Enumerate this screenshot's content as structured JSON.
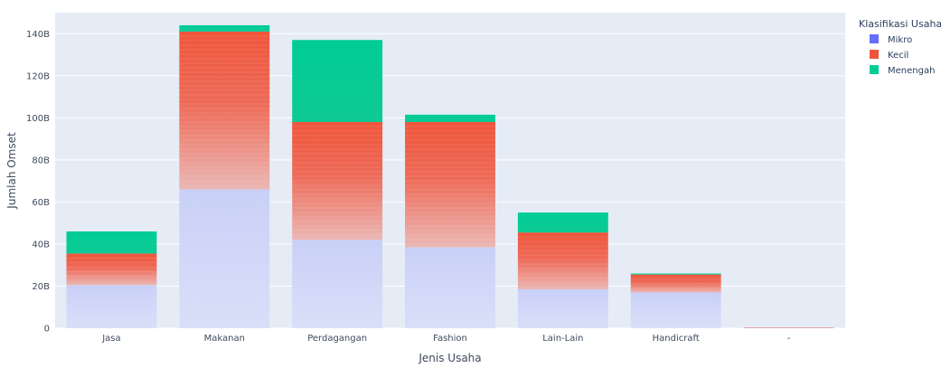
{
  "chart_data": {
    "type": "bar",
    "stacked": true,
    "categories": [
      "Jasa",
      "Makanan",
      "Perdagangan",
      "Fashion",
      "Lain-Lain",
      "Handicraft",
      "-"
    ],
    "series": [
      {
        "name": "Mikro",
        "values": [
          20.5,
          66,
          42,
          38.5,
          18.5,
          17,
          0.3
        ],
        "color": "#636efa"
      },
      {
        "name": "Kecil",
        "values": [
          15,
          75,
          56,
          59.5,
          27,
          8.5,
          0.1
        ],
        "color": "#ef553b"
      },
      {
        "name": "Menengah",
        "values": [
          10.5,
          3,
          39,
          3.5,
          9.5,
          0.5,
          0
        ],
        "color": "#00cc96"
      }
    ],
    "title": "",
    "xlabel": "Jenis Usaha",
    "ylabel": "Jumlah Omset",
    "ylim": [
      0,
      150
    ],
    "yticks": [
      0,
      20,
      40,
      60,
      80,
      100,
      120,
      140
    ],
    "ytick_labels": [
      "0",
      "20B",
      "40B",
      "60B",
      "80B",
      "100B",
      "120B",
      "140B"
    ],
    "legend_title": "Klasifikasi Usaha",
    "legend_position": "top-right",
    "grid": true,
    "plot_background": "#e5ecf6"
  }
}
